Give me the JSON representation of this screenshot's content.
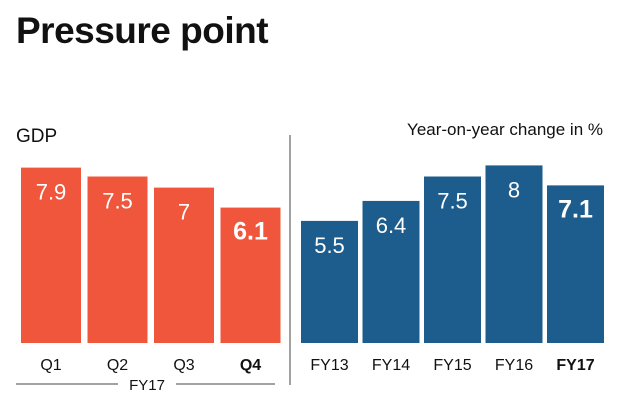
{
  "title": "Pressure point",
  "chart_data": [
    {
      "type": "bar",
      "label": "GDP",
      "categories": [
        "Q1",
        "Q2",
        "Q3",
        "Q4"
      ],
      "values": [
        7.9,
        7.5,
        7,
        6.1
      ],
      "value_labels": [
        "7.9",
        "7.5",
        "7",
        "6.1"
      ],
      "highlight_index": 3,
      "group_label": "FY17",
      "color": "#f0563b",
      "ylim": [
        0,
        8.3
      ]
    },
    {
      "type": "bar",
      "label": "Year-on-year change in %",
      "categories": [
        "FY13",
        "FY14",
        "FY15",
        "FY16",
        "FY17"
      ],
      "values": [
        5.5,
        6.4,
        7.5,
        8,
        7.1
      ],
      "value_labels": [
        "5.5",
        "6.4",
        "7.5",
        "8",
        "7.1"
      ],
      "highlight_index": 4,
      "color": "#1d5d8e",
      "ylim": [
        0,
        8.3
      ]
    }
  ]
}
